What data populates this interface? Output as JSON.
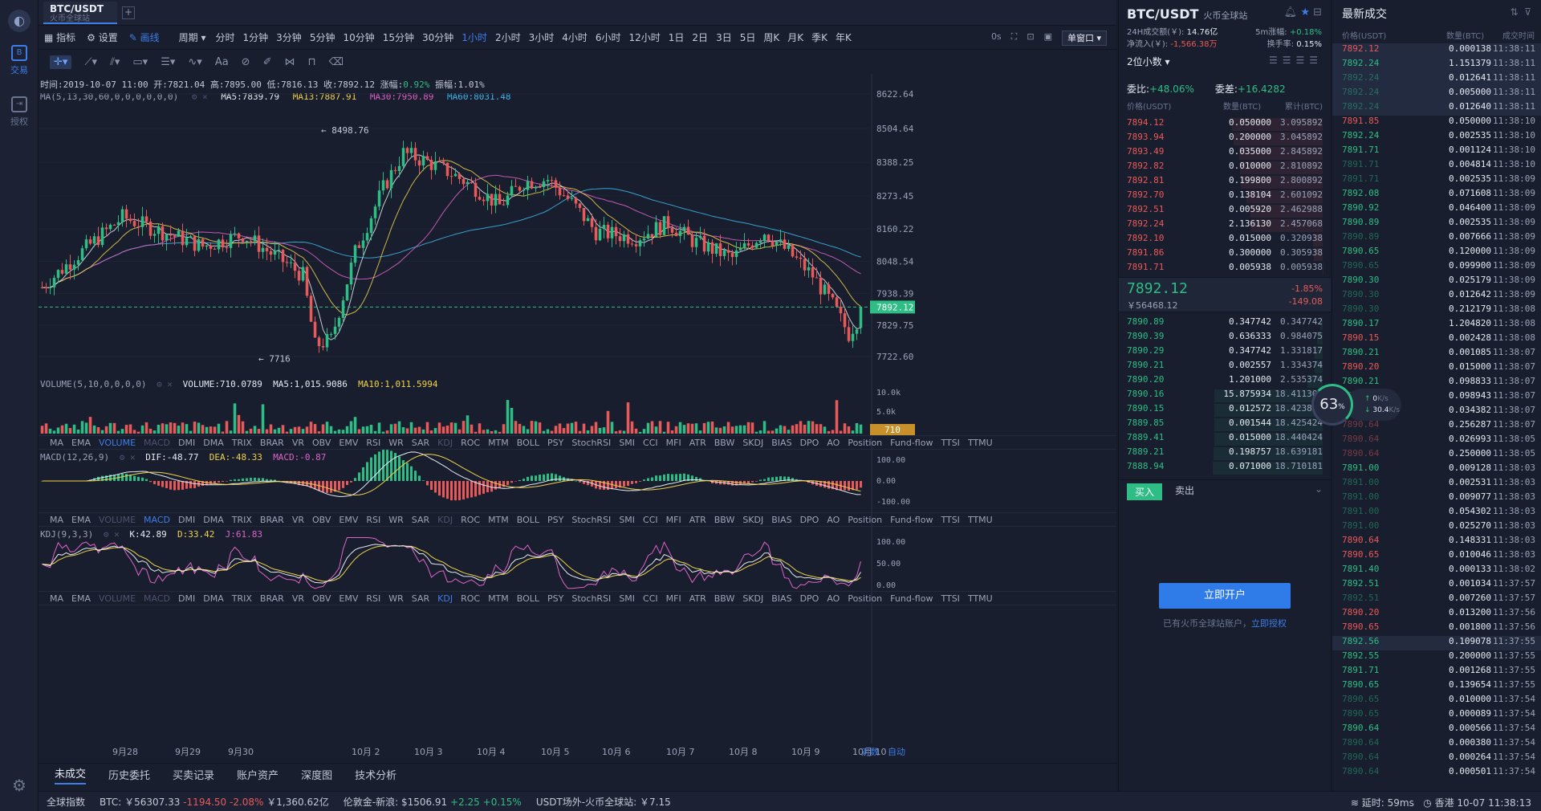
{
  "rail": {
    "trade_label": "交易",
    "auth_label": "授权"
  },
  "tabs": {
    "pair": "BTC/USDT",
    "exchange": "火币全球站",
    "add": "+"
  },
  "toolbar1": {
    "indicators": "指标",
    "settings": "设置",
    "draw": "画线",
    "period": "周期",
    "periods": [
      "分时",
      "1分钟",
      "3分钟",
      "5分钟",
      "10分钟",
      "15分钟",
      "30分钟",
      "1小时",
      "2小时",
      "3小时",
      "4小时",
      "6小时",
      "12小时",
      "1日",
      "2日",
      "3日",
      "5日",
      "周K",
      "月K",
      "季K",
      "年K"
    ],
    "active_period": "1小时",
    "os_label": "0s",
    "single_window": "单窗口 ▾"
  },
  "ohlc": {
    "time_label": "时间:",
    "time": "2019-10-07 11:00",
    "open_label": "开:",
    "open": "7821.04",
    "high_label": "高:",
    "high": "7895.00",
    "low_label": "低:",
    "low": "7816.13",
    "close_label": "收:",
    "close": "7892.12",
    "chg_label": "涨幅:",
    "chg": "0.92%",
    "amp_label": "振幅:",
    "amp": "1.01%"
  },
  "ma": {
    "title": "MA(5,13,30,60,0,0,0,0,0,0)",
    "ma5": "MA5:7839.79",
    "ma13": "MA13:7887.91",
    "ma30": "MA30:7950.89",
    "ma60": "MA60:8031.48"
  },
  "price_axis": [
    "8622.64",
    "8504.64",
    "8388.25",
    "8273.45",
    "8160.22",
    "8048.54",
    "7938.39",
    "7829.75",
    "7722.60"
  ],
  "price_marks": {
    "high": "8498.76",
    "low": "7716",
    "last_tag": "7892.12"
  },
  "volume": {
    "title": "VOLUME(5,10,0,0,0,0)",
    "vol": "VOLUME:710.0789",
    "ma5": "MA5:1,015.9086",
    "ma10": "MA10:1,011.5994",
    "axis": [
      "10.0k",
      "5.0k"
    ],
    "last_tag": "710"
  },
  "macd": {
    "title": "MACD(12,26,9)",
    "dif": "DIF:-48.77",
    "dea": "DEA:-48.33",
    "macd": "MACD:-0.87",
    "axis": [
      "100.00",
      "0.00",
      "-100.00"
    ]
  },
  "kdj": {
    "title": "KDJ(9,3,3)",
    "k": "K:42.89",
    "d": "D:33.42",
    "j": "J:61.83",
    "axis": [
      "100.00",
      "50.00",
      "0.00"
    ]
  },
  "indicator_list": [
    "MA",
    "EMA",
    "VOLUME",
    "MACD",
    "DMI",
    "DMA",
    "TRIX",
    "BRAR",
    "VR",
    "OBV",
    "EMV",
    "RSI",
    "WR",
    "SAR",
    "KDJ",
    "ROC",
    "MTM",
    "BOLL",
    "PSY",
    "StochRSI",
    "SMI",
    "CCI",
    "MFI",
    "ATR",
    "BBW",
    "SKDJ",
    "BIAS",
    "DPO",
    "AO",
    "Position",
    "Fund-flow",
    "TTSI",
    "TTMU"
  ],
  "time_axis": [
    "9月28",
    "9月29",
    "9月30",
    "10月 2",
    "10月 3",
    "10月 4",
    "10月 5",
    "10月 6",
    "10月 7",
    "10月 8",
    "10月 9",
    "10月 10"
  ],
  "time_axis_right": {
    "log": "对数",
    "auto": "自动"
  },
  "bottom_tabs": [
    "未成交",
    "历史委托",
    "买卖记录",
    "账户资产",
    "深度图",
    "技术分析"
  ],
  "book": {
    "pair": "BTC/USDT",
    "exchange": "火币全球站",
    "vol_label": "24H成交额(￥):",
    "vol": "14.76亿",
    "inflow_label": "净流入(￥):",
    "inflow": "-1,566.38万",
    "rise_label": "5m涨幅:",
    "rise": "+0.18%",
    "turn_label": "换手率:",
    "turn": "0.15%",
    "decimals": "2位小数 ▾",
    "ratio_label": "委比:",
    "ratio": "+48.06%",
    "diff_label": "委差:",
    "diff": "+16.4282",
    "hdr_price": "价格(USDT)",
    "hdr_amt": "数量(BTC)",
    "hdr_sum": "累计(BTC)",
    "asks": [
      [
        "7894.12",
        "0.050000",
        "3.095892"
      ],
      [
        "7893.94",
        "0.200000",
        "3.045892"
      ],
      [
        "7893.49",
        "0.035000",
        "2.845892"
      ],
      [
        "7892.82",
        "0.010000",
        "2.810892"
      ],
      [
        "7892.81",
        "0.199800",
        "2.800892"
      ],
      [
        "7892.70",
        "0.138104",
        "2.601092"
      ],
      [
        "7892.51",
        "0.005920",
        "2.462988"
      ],
      [
        "7892.24",
        "2.136130",
        "2.457068"
      ],
      [
        "7892.10",
        "0.015000",
        "0.320938"
      ],
      [
        "7891.86",
        "0.300000",
        "0.305938"
      ],
      [
        "7891.71",
        "0.005938",
        "0.005938"
      ]
    ],
    "last_price": "7892.12",
    "last_cny": "￥56468.12",
    "last_pct": "-1.85%",
    "last_chg": "-149.08",
    "bids": [
      [
        "7890.89",
        "0.347742",
        "0.347742"
      ],
      [
        "7890.39",
        "0.636333",
        "0.984075"
      ],
      [
        "7890.29",
        "0.347742",
        "1.331817"
      ],
      [
        "7890.21",
        "0.002557",
        "1.334374"
      ],
      [
        "7890.20",
        "1.201000",
        "2.535374"
      ],
      [
        "7890.16",
        "15.875934",
        "18.411308"
      ],
      [
        "7890.15",
        "0.012572",
        "18.423880"
      ],
      [
        "7889.85",
        "0.001544",
        "18.425424"
      ],
      [
        "7889.41",
        "0.015000",
        "18.440424"
      ],
      [
        "7889.21",
        "0.198757",
        "18.639181"
      ],
      [
        "7888.94",
        "0.071000",
        "18.710181"
      ]
    ],
    "buy_tab": "买入",
    "sell_tab": "卖出",
    "open_btn": "立即开户",
    "note": "已有火币全球站账户，",
    "note_link": "立即授权"
  },
  "speed": {
    "pct": "63",
    "pct_unit": "%",
    "up": "0",
    "down": "30.4",
    "unit": "K/s"
  },
  "trades": {
    "title": "最新成交",
    "hdr_price": "价格(USDT)",
    "hdr_amt": "数量(BTC)",
    "hdr_time": "成交时间",
    "rows": [
      [
        "7892.12",
        "0.000138",
        "11:38:11",
        "dn"
      ],
      [
        "7892.24",
        "1.151379",
        "11:38:11",
        "up"
      ],
      [
        "7892.24",
        "0.012641",
        "11:38:11",
        "upf"
      ],
      [
        "7892.24",
        "0.005000",
        "11:38:11",
        "upf"
      ],
      [
        "7892.24",
        "0.012640",
        "11:38:11",
        "upf"
      ],
      [
        "7891.85",
        "0.050000",
        "11:38:10",
        "dn"
      ],
      [
        "7892.24",
        "0.002535",
        "11:38:10",
        "up"
      ],
      [
        "7891.71",
        "0.001124",
        "11:38:10",
        "up"
      ],
      [
        "7891.71",
        "0.004814",
        "11:38:10",
        "upf"
      ],
      [
        "7891.71",
        "0.002535",
        "11:38:09",
        "upf"
      ],
      [
        "7892.08",
        "0.071608",
        "11:38:09",
        "up"
      ],
      [
        "7890.92",
        "0.046400",
        "11:38:09",
        "up"
      ],
      [
        "7890.89",
        "0.002535",
        "11:38:09",
        "up"
      ],
      [
        "7890.89",
        "0.007666",
        "11:38:09",
        "upf"
      ],
      [
        "7890.65",
        "0.120000",
        "11:38:09",
        "up"
      ],
      [
        "7890.65",
        "0.099900",
        "11:38:09",
        "upf"
      ],
      [
        "7890.30",
        "0.025179",
        "11:38:09",
        "up"
      ],
      [
        "7890.30",
        "0.012642",
        "11:38:09",
        "upf"
      ],
      [
        "7890.30",
        "0.212179",
        "11:38:08",
        "upf"
      ],
      [
        "7890.17",
        "1.204820",
        "11:38:08",
        "up"
      ],
      [
        "7890.15",
        "0.002428",
        "11:38:08",
        "dn"
      ],
      [
        "7890.21",
        "0.001085",
        "11:38:07",
        "up"
      ],
      [
        "7890.20",
        "0.015000",
        "11:38:07",
        "dn"
      ],
      [
        "7890.21",
        "0.098833",
        "11:38:07",
        "up"
      ],
      [
        "7890.64",
        "0.098943",
        "11:38:07",
        "dnf"
      ],
      [
        "7890.64",
        "0.034382",
        "11:38:07",
        "dnf"
      ],
      [
        "7890.64",
        "0.256287",
        "11:38:07",
        "dnf"
      ],
      [
        "7890.64",
        "0.026993",
        "11:38:05",
        "dnf"
      ],
      [
        "7890.64",
        "0.250000",
        "11:38:05",
        "dnf"
      ],
      [
        "7891.00",
        "0.009128",
        "11:38:03",
        "up"
      ],
      [
        "7891.00",
        "0.002531",
        "11:38:03",
        "upf"
      ],
      [
        "7891.00",
        "0.009077",
        "11:38:03",
        "upf"
      ],
      [
        "7891.00",
        "0.054302",
        "11:38:03",
        "upf"
      ],
      [
        "7891.00",
        "0.025270",
        "11:38:03",
        "upf"
      ],
      [
        "7890.64",
        "0.148331",
        "11:38:03",
        "dn"
      ],
      [
        "7890.65",
        "0.010046",
        "11:38:03",
        "dn"
      ],
      [
        "7891.40",
        "0.000133",
        "11:38:02",
        "up"
      ],
      [
        "7892.51",
        "0.001034",
        "11:37:57",
        "up"
      ],
      [
        "7892.51",
        "0.007260",
        "11:37:57",
        "upf"
      ],
      [
        "7890.20",
        "0.013200",
        "11:37:56",
        "dn"
      ],
      [
        "7890.65",
        "0.001800",
        "11:37:56",
        "dn"
      ],
      [
        "7892.56",
        "0.109078",
        "11:37:55",
        "uph"
      ],
      [
        "7892.55",
        "0.200000",
        "11:37:55",
        "up"
      ],
      [
        "7891.71",
        "0.001268",
        "11:37:55",
        "up"
      ],
      [
        "7890.65",
        "0.139654",
        "11:37:55",
        "up"
      ],
      [
        "7890.65",
        "0.010000",
        "11:37:54",
        "upf"
      ],
      [
        "7890.65",
        "0.000089",
        "11:37:54",
        "upf"
      ],
      [
        "7890.64",
        "0.000566",
        "11:37:54",
        "up"
      ],
      [
        "7890.64",
        "0.000380",
        "11:37:54",
        "upf"
      ],
      [
        "7890.64",
        "0.000264",
        "11:37:54",
        "upf"
      ],
      [
        "7890.64",
        "0.000501",
        "11:37:54",
        "upf"
      ]
    ]
  },
  "footer": {
    "index": "全球指数",
    "btc_label": "BTC:",
    "btc": "￥56307.33",
    "btc_chg": "-1194.50",
    "btc_pct": "-2.08%",
    "btc_vol": "￥1,360.62亿",
    "gold_label": "伦敦金-新浪:",
    "gold": "$1506.91",
    "gold_chg": "+2.25",
    "gold_pct": "+0.15%",
    "usdt_label": "USDT场外-火币全球站:",
    "usdt": "￥7.15",
    "latency": "延时: 59ms",
    "clock": "香港 10-07 11:38:13"
  },
  "colors": {
    "up": "#2ebd85",
    "down": "#e85a5a",
    "accent": "#3d7de8",
    "ma5": "#e6eaf2",
    "ma13": "#f0d24a",
    "ma30": "#e063c8",
    "ma60": "#3fb6e8"
  }
}
